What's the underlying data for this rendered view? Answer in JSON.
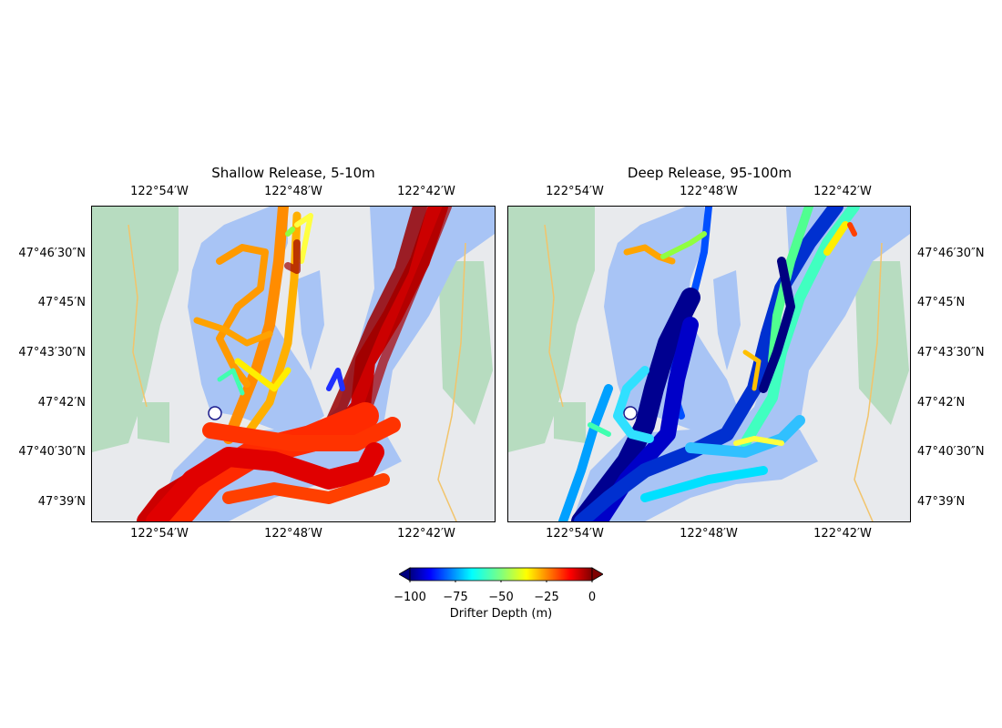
{
  "panels": [
    {
      "title": "Shallow Release, 5-10m",
      "x_ticks": [
        "122°54′W",
        "122°48′W",
        "122°42′W"
      ],
      "y_ticks": [
        "47°46′30″N",
        "47°45′N",
        "47°43′30″N",
        "47°42′N",
        "47°40′30″N",
        "47°39′N"
      ],
      "depth_range_m": [
        -10,
        -5
      ]
    },
    {
      "title": "Deep Release, 95-100m",
      "x_ticks": [
        "122°54′W",
        "122°48′W",
        "122°42′W"
      ],
      "y_ticks": [
        "47°46′30″N",
        "47°45′N",
        "47°43′30″N",
        "47°42′N",
        "47°40′30″N",
        "47°39′N"
      ],
      "depth_range_m": [
        -100,
        -95
      ]
    }
  ],
  "colorbar": {
    "label": "Drifter Depth (m)",
    "ticks": [
      "−100",
      "−75",
      "−50",
      "−25",
      "0"
    ],
    "range": [
      -100,
      0
    ],
    "colormap": "jet",
    "extend": "both"
  },
  "colors": {
    "water": "#a8c4f5",
    "land": "#e8eaed",
    "park": "#b7dcc0",
    "release_marker": "#ffffff",
    "release_marker_edge": "#1a1a8c"
  }
}
